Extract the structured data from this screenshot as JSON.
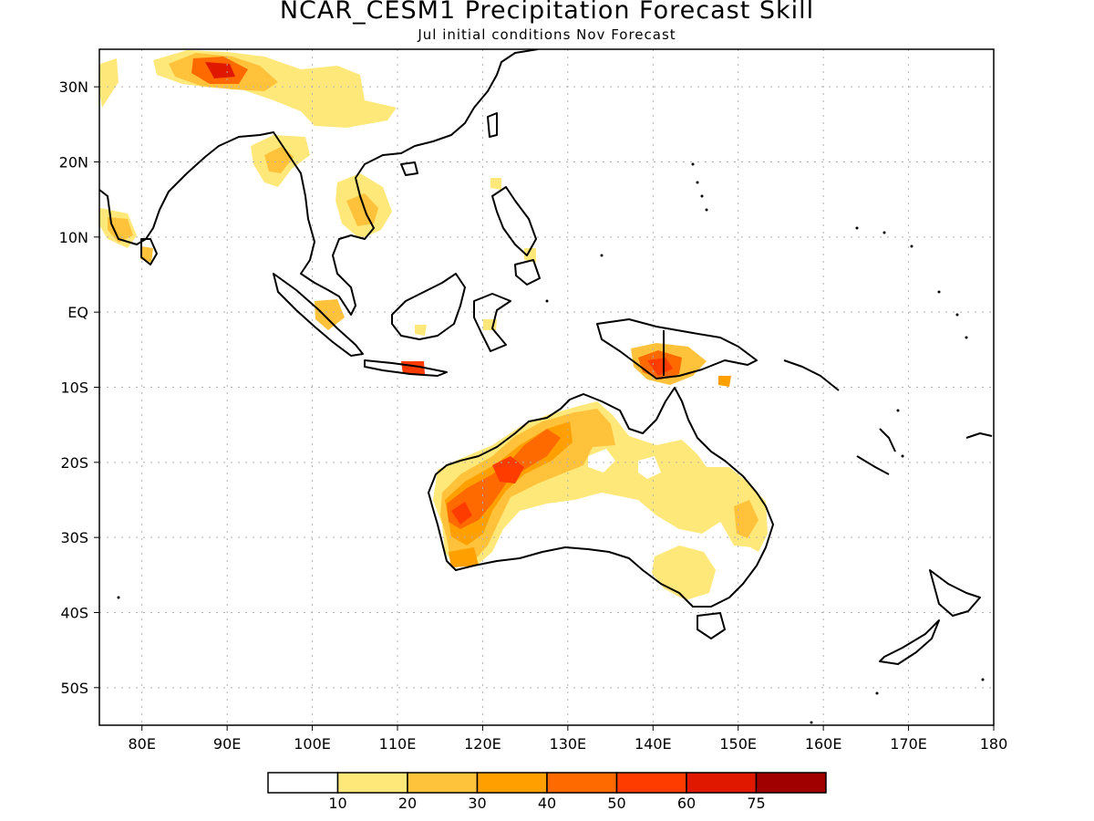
{
  "title": "NCAR_CESM1 Precipitation Forecast Skill",
  "subtitle": "Jul initial conditions  Nov Forecast",
  "map": {
    "lon_range": [
      75,
      180
    ],
    "lat_range": [
      -55,
      35
    ],
    "lat_ticks": [
      {
        "value": 30,
        "label": "30N"
      },
      {
        "value": 20,
        "label": "20N"
      },
      {
        "value": 10,
        "label": "10N"
      },
      {
        "value": 0,
        "label": "EQ"
      },
      {
        "value": -10,
        "label": "10S"
      },
      {
        "value": -20,
        "label": "20S"
      },
      {
        "value": -30,
        "label": "30S"
      },
      {
        "value": -40,
        "label": "40S"
      },
      {
        "value": -50,
        "label": "50S"
      }
    ],
    "lon_ticks": [
      {
        "value": 80,
        "label": "80E"
      },
      {
        "value": 90,
        "label": "90E"
      },
      {
        "value": 100,
        "label": "100E"
      },
      {
        "value": 110,
        "label": "110E"
      },
      {
        "value": 120,
        "label": "120E"
      },
      {
        "value": 130,
        "label": "130E"
      },
      {
        "value": 140,
        "label": "140E"
      },
      {
        "value": 150,
        "label": "150E"
      },
      {
        "value": 160,
        "label": "160E"
      },
      {
        "value": 170,
        "label": "170E"
      },
      {
        "value": 180,
        "label": "180"
      }
    ],
    "grid": true
  },
  "colorbar": {
    "colors": [
      "#ffffff",
      "#ffe87a",
      "#ffc23a",
      "#ffa000",
      "#ff6a00",
      "#ff3c00",
      "#e01800",
      "#a00000"
    ],
    "labels": [
      "10",
      "20",
      "30",
      "40",
      "50",
      "60",
      "75"
    ]
  }
}
